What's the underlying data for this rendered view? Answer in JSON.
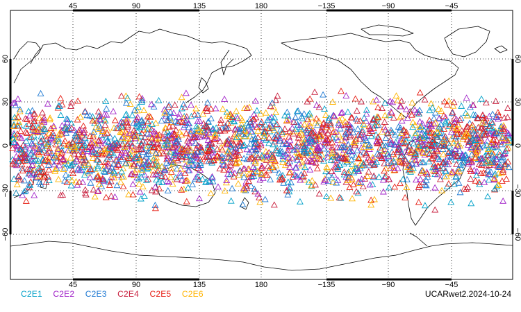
{
  "map": {
    "top_lon_labels": [
      "45",
      "90",
      "135",
      "180",
      "−135",
      "−90",
      "−45"
    ],
    "bottom_lon_labels": [
      "45",
      "90",
      "135",
      "180",
      "−135",
      "−90",
      "−45"
    ],
    "lat_labels_left": [
      "60",
      "30",
      "0",
      "−30",
      "−60"
    ],
    "lat_labels_right": [
      "60",
      "30",
      "0",
      "−30",
      "−60"
    ],
    "gridline_color": "#000000",
    "coastline_color": "#000000"
  },
  "legend": {
    "items": [
      {
        "label": "C2E1",
        "color": "#00a0c8"
      },
      {
        "label": "C2E2",
        "color": "#a020c8"
      },
      {
        "label": "C2E3",
        "color": "#1e78d2"
      },
      {
        "label": "C2E4",
        "color": "#c81e3c"
      },
      {
        "label": "C2E5",
        "color": "#e61e14"
      },
      {
        "label": "C2E6",
        "color": "#ffb400"
      }
    ]
  },
  "footer": {
    "product_label": "UCARwet2.2024-10-24"
  }
}
